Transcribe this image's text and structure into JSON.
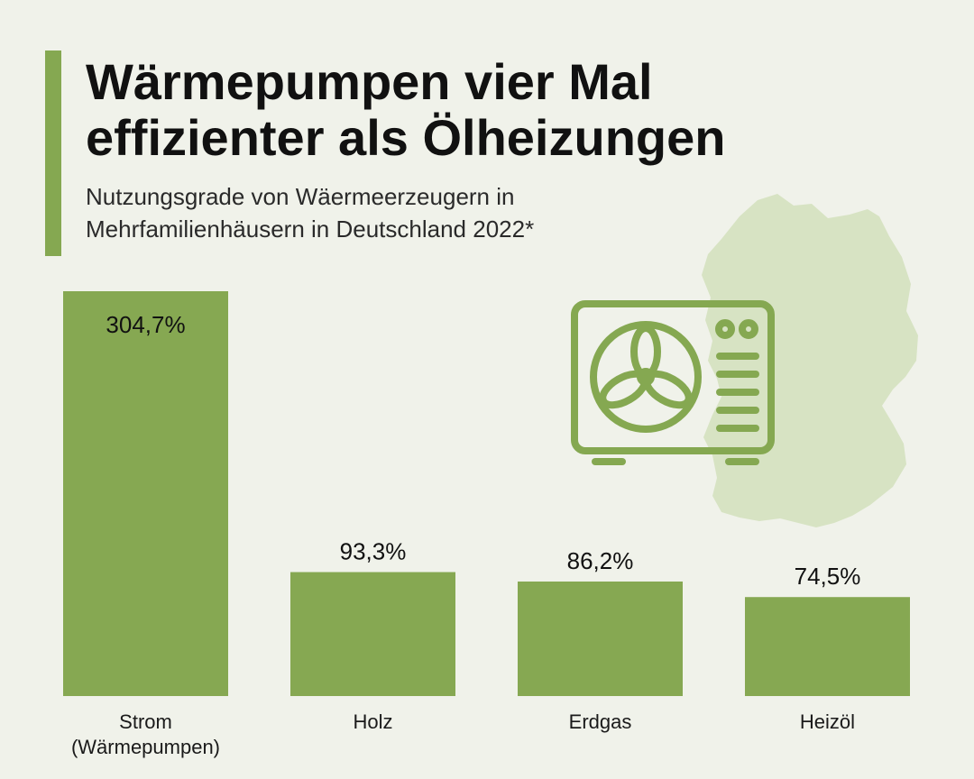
{
  "header": {
    "title_line1": "Wärmepumpen vier Mal",
    "title_line2": "effizienter als Ölheizungen",
    "subtitle_line1": "Nutzungsgrade von Wäermeerzeugern in",
    "subtitle_line2": "Mehrfamilienhäusern in Deutschland 2022*"
  },
  "colors": {
    "accent": "#85a851",
    "bar": "#86a852",
    "map": "#d7e3c3",
    "icon": "#85a851",
    "background": "#f0f2ea"
  },
  "icons": [
    "germany-map-icon",
    "heat-pump-icon"
  ],
  "chart_data": {
    "type": "bar",
    "title": "Wärmepumpen vier Mal effizienter als Ölheizungen",
    "subtitle": "Nutzungsgrade von Wäermeerzeugern in Mehrfamilienhäusern in Deutschland 2022*",
    "categories": [
      "Strom (Wärmepumpen)",
      "Holz",
      "Erdgas",
      "Heizöl"
    ],
    "category_lines": [
      [
        "Strom",
        "(Wärmepumpen)"
      ],
      [
        "Holz"
      ],
      [
        "Erdgas"
      ],
      [
        "Heizöl"
      ]
    ],
    "values": [
      304.7,
      93.3,
      86.2,
      74.5
    ],
    "value_labels": [
      "304,7%",
      "93,3%",
      "86,2%",
      "74,5%"
    ],
    "unit": "%",
    "ylim": [
      0,
      304.7
    ],
    "grid": false,
    "legend": "none"
  }
}
